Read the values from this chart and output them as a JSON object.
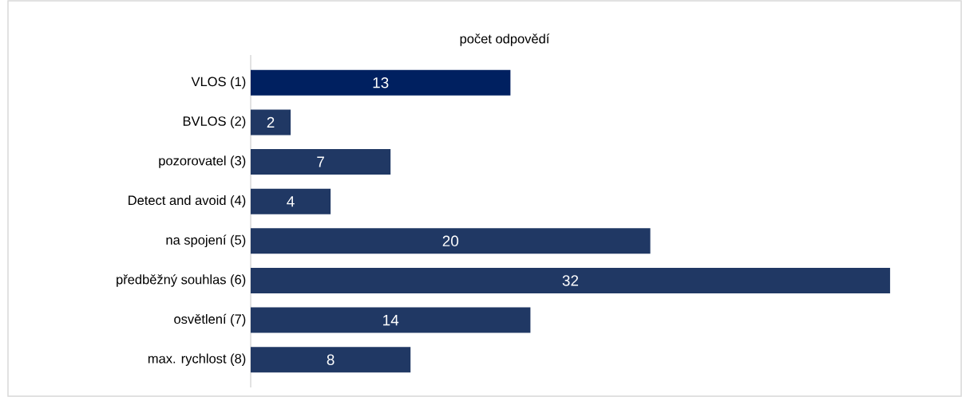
{
  "chart_data": {
    "type": "bar",
    "orientation": "horizontal",
    "title": "počet odpovědí",
    "categories": [
      "VLOS (1)",
      "BVLOS (2)",
      "pozorovatel (3)",
      "Detect and avoid (4)",
      "na spojení (5)",
      "předběžný souhlas (6)",
      "osvětlení (7)",
      "max. rychlost (8)"
    ],
    "values": [
      13,
      2,
      7,
      4,
      20,
      32,
      14,
      8
    ],
    "colors": [
      "#002060",
      "#203864",
      "#203864",
      "#203864",
      "#203864",
      "#203864",
      "#203864",
      "#203864"
    ],
    "data_labels": true,
    "tick_labels": "y"
  }
}
